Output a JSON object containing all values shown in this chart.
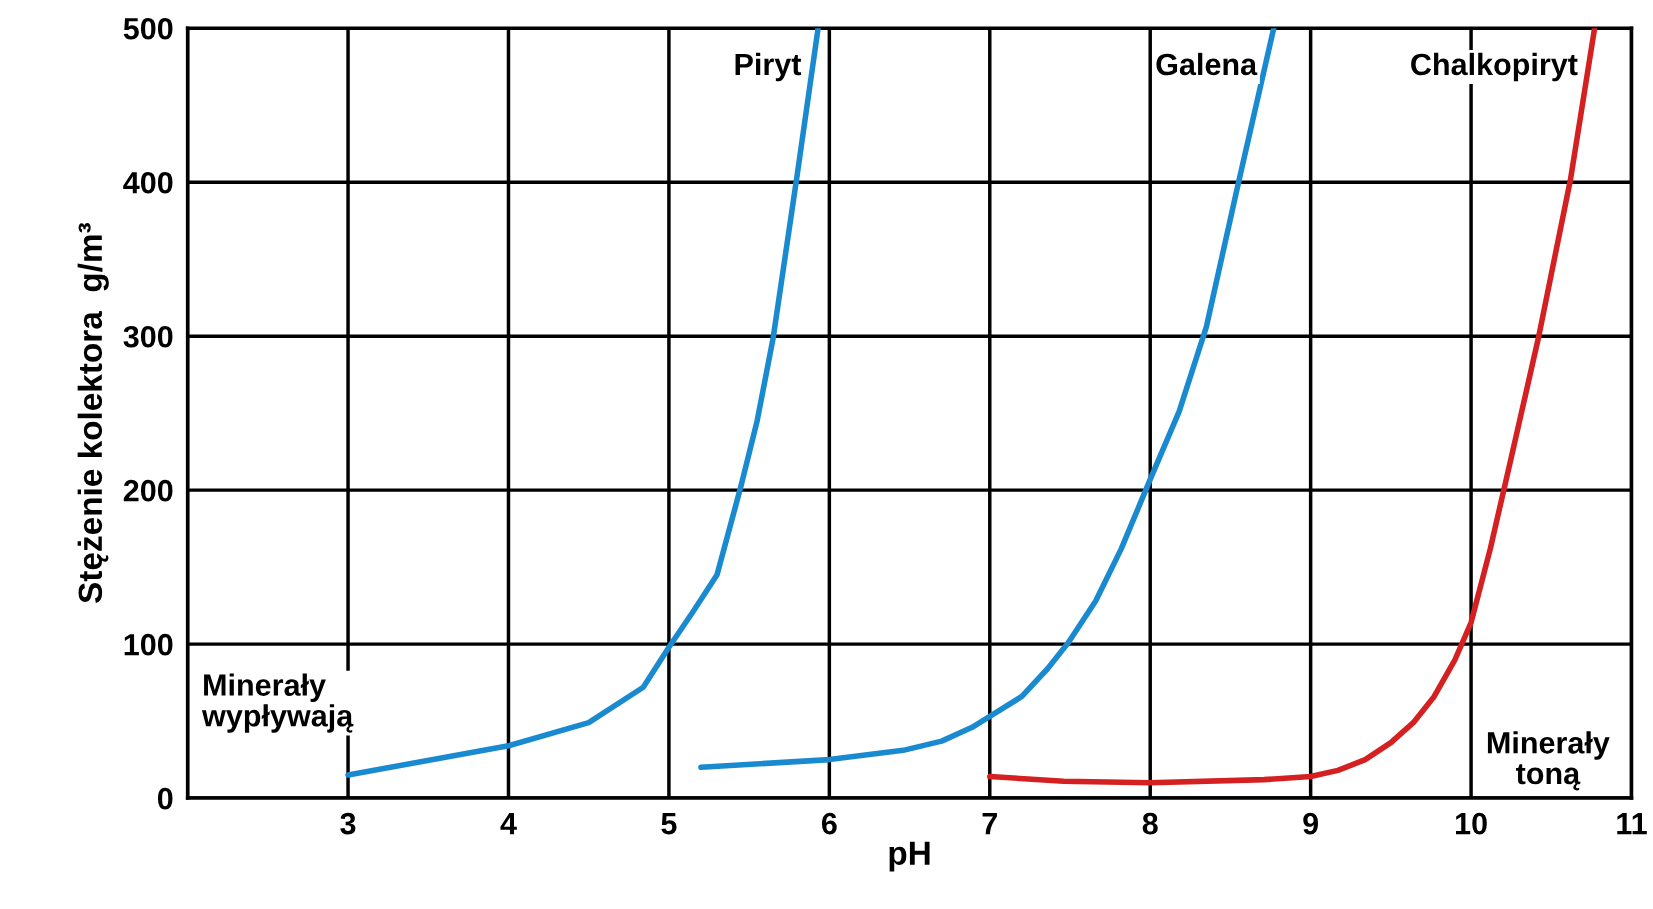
{
  "chart_data": {
    "type": "line",
    "xlabel": "pH",
    "ylabel": "Stężenie kolektora  g/m³",
    "xlim": [
      2,
      11
    ],
    "ylim": [
      0,
      500
    ],
    "xticks": [
      {
        "value": 2,
        "label": null
      },
      3,
      4,
      5,
      6,
      7,
      8,
      9,
      10,
      11
    ],
    "yticks": [
      0,
      100,
      200,
      300,
      400,
      500
    ],
    "grid": true,
    "legend": false,
    "marker": "none",
    "line_style": "solid",
    "series": [
      {
        "name": "Piryt",
        "color": "#1a8ad0",
        "x": [
          3,
          4,
          4.5,
          4.84,
          5,
          5.15,
          5.3,
          5.45,
          5.55,
          5.65,
          5.8,
          5.93
        ],
        "values": [
          15,
          34,
          49,
          72,
          98,
          121,
          145,
          203,
          245,
          299,
          405,
          500
        ]
      },
      {
        "name": "Galena",
        "color": "#1a8ad0",
        "x": [
          5.2,
          6,
          6.46,
          6.7,
          6.89,
          7,
          7.2,
          7.36,
          7.49,
          7.66,
          7.82,
          8,
          8.18,
          8.35,
          8.54,
          8.77
        ],
        "values": [
          20,
          25,
          31,
          37,
          46,
          53,
          66,
          84,
          101,
          128,
          162,
          207,
          251,
          306,
          395,
          500
        ]
      },
      {
        "name": "Chalkopiryt",
        "color": "#d42020",
        "x": [
          7,
          7.46,
          8,
          8.71,
          9,
          9.17,
          9.34,
          9.5,
          9.64,
          9.77,
          9.9,
          10,
          10.12,
          10.25,
          10.42,
          10.62,
          10.77
        ],
        "values": [
          14,
          11,
          10,
          12,
          14,
          18,
          25,
          36,
          49,
          66,
          90,
          114,
          162,
          221,
          299,
          402,
          500
        ]
      }
    ],
    "annotations": [
      "Minerały\nwypływają",
      "Minerały\ntoną"
    ]
  }
}
